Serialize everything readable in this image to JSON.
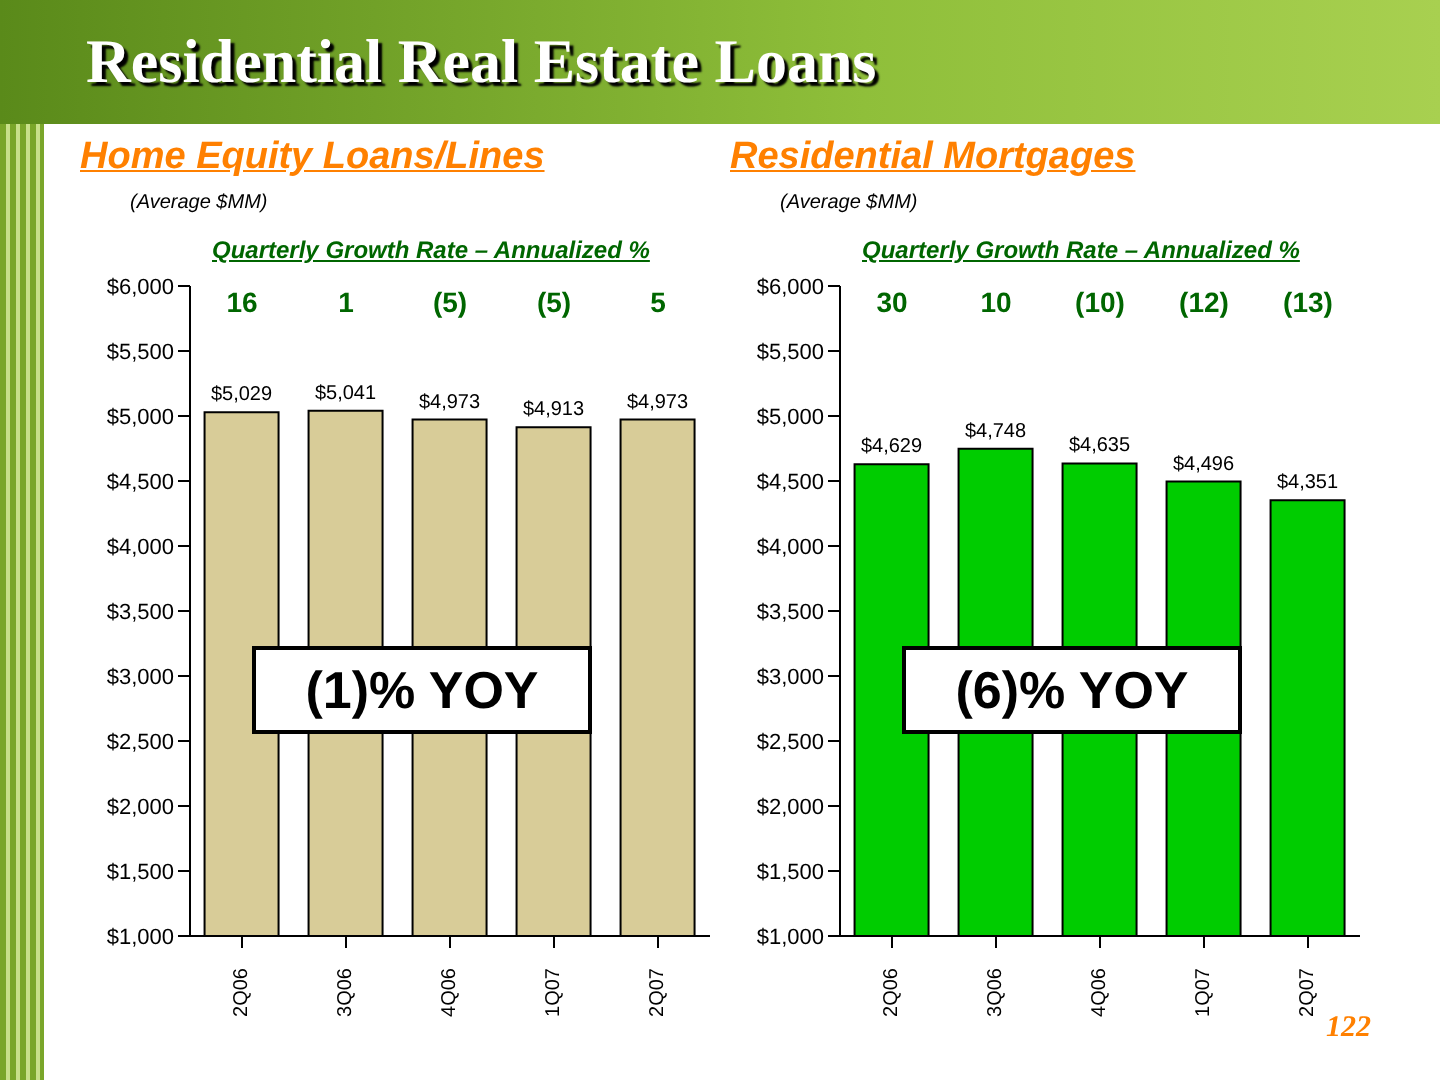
{
  "chart_data": [
    {
      "type": "bar",
      "title": "Home Equity Loans/Lines",
      "subtitle": "(Average $MM)",
      "categories": [
        "2Q06",
        "3Q06",
        "4Q06",
        "1Q07",
        "2Q07"
      ],
      "values": [
        5029,
        5041,
        4973,
        4913,
        4973
      ],
      "value_labels": [
        "$5,029",
        "$5,041",
        "$4,973",
        "$4,913",
        "$4,973"
      ],
      "color": "#d8cc98",
      "ylim": [
        1000,
        6000
      ],
      "yticks": [
        {
          "value": 1000,
          "label": "$1,000"
        },
        {
          "value": 1500,
          "label": "$1,500"
        },
        {
          "value": 2000,
          "label": "$2,000"
        },
        {
          "value": 2500,
          "label": "$2,500"
        },
        {
          "value": 3000,
          "label": "$3,000"
        },
        {
          "value": 3500,
          "label": "$3,500"
        },
        {
          "value": 4000,
          "label": "$4,000"
        },
        {
          "value": 4500,
          "label": "$4,500"
        },
        {
          "value": 5000,
          "label": "$5,000"
        },
        {
          "value": 5500,
          "label": "$5,500"
        },
        {
          "value": 6000,
          "label": "$6,000"
        }
      ],
      "grid": false,
      "legend": false,
      "annotations": [
        "Residential Real Estate Loans",
        "Quarterly Growth Rate – Annualized %",
        "(1)% YOY",
        "16",
        "1",
        "(5)",
        "(5)",
        "5"
      ]
    },
    {
      "type": "bar",
      "title": "Residential Mortgages",
      "subtitle": "(Average $MM)",
      "categories": [
        "2Q06",
        "3Q06",
        "4Q06",
        "1Q07",
        "2Q07"
      ],
      "values": [
        4629,
        4748,
        4635,
        4496,
        4351
      ],
      "value_labels": [
        "$4,629",
        "$4,748",
        "$4,635",
        "$4,496",
        "$4,351"
      ],
      "color": "#00cc00",
      "ylim": [
        1000,
        6000
      ],
      "yticks": [
        {
          "value": 1000,
          "label": "$1,000"
        },
        {
          "value": 1500,
          "label": "$1,500"
        },
        {
          "value": 2000,
          "label": "$2,000"
        },
        {
          "value": 2500,
          "label": "$2,500"
        },
        {
          "value": 3000,
          "label": "$3,000"
        },
        {
          "value": 3500,
          "label": "$3,500"
        },
        {
          "value": 4000,
          "label": "$4,000"
        },
        {
          "value": 4500,
          "label": "$4,500"
        },
        {
          "value": 5000,
          "label": "$5,000"
        },
        {
          "value": 5500,
          "label": "$5,500"
        },
        {
          "value": 6000,
          "label": "$6,000"
        }
      ],
      "grid": false,
      "legend": false,
      "annotations": [
        "Quarterly Growth Rate – Annualized %",
        "(6)% YOY",
        "122",
        "30",
        "10",
        "(10)",
        "(12)",
        "(13)"
      ]
    }
  ]
}
